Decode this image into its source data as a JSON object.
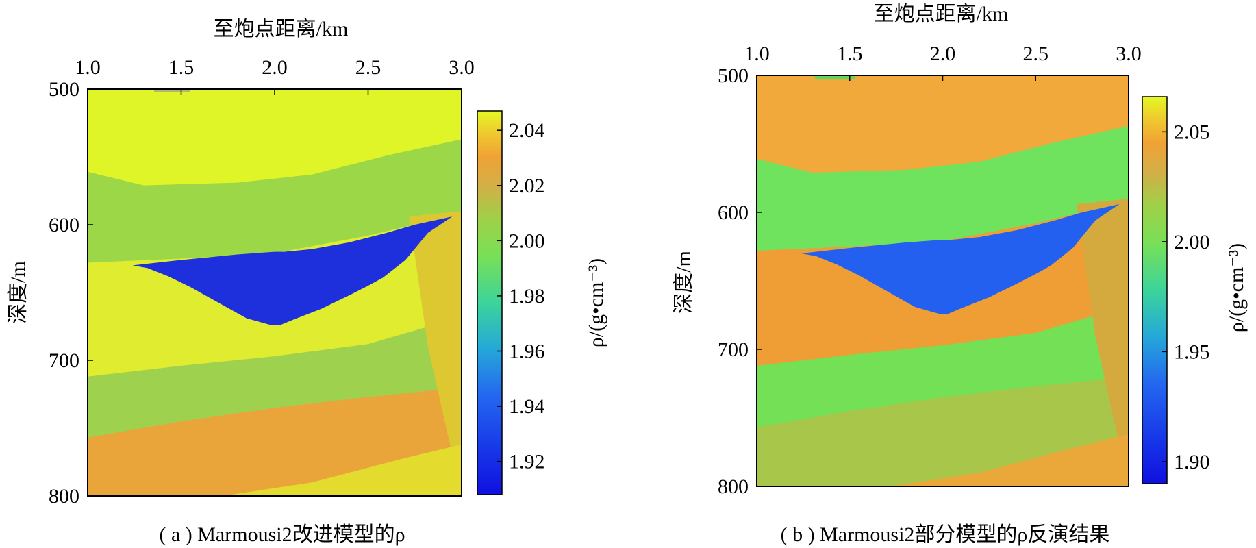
{
  "chart_data": [
    {
      "type": "heatmap",
      "panel_caption": "( a ) Marmousi2改进模型的ρ",
      "xlabel": "至炮点距离/km",
      "ylabel": "深度/m",
      "x_ticks": [
        "1.0",
        "1.5",
        "2.0",
        "2.5",
        "3.0"
      ],
      "y_ticks": [
        "500",
        "600",
        "700",
        "800"
      ],
      "xlim": [
        1.0,
        3.0
      ],
      "ylim": [
        500,
        800
      ],
      "y_inverted": true,
      "colorbar": {
        "label": "ρ/(g•cm⁻³)",
        "range": [
          1.908,
          2.047
        ],
        "ticks": [
          "1.92",
          "1.94",
          "1.96",
          "1.98",
          "2.00",
          "2.02",
          "2.04"
        ]
      },
      "layers": [
        {
          "name": "layer-1",
          "value": 2.045,
          "color": "#dff528",
          "bottom": {
            "x": [
              1.0,
              1.3,
              1.8,
              2.2,
              2.6,
              3.0
            ],
            "y": [
              561,
              571,
              569,
              563,
              549,
              537
            ]
          }
        },
        {
          "name": "layer-2",
          "value": 2.0,
          "color": "#9cd748",
          "bottom": {
            "x": [
              1.0,
              1.5,
              2.0,
              2.5,
              2.9,
              3.0
            ],
            "y": [
              628,
              625,
              621,
              608,
              595,
              594
            ]
          }
        },
        {
          "name": "layer-3",
          "value": 2.04,
          "color": "#e0ec30",
          "bottom": {
            "x": [
              1.0,
              1.5,
              2.0,
              2.5,
              3.0
            ],
            "y": [
              712,
              704,
              697,
              688,
              668
            ]
          }
        },
        {
          "name": "layer-4",
          "value": 2.0,
          "color": "#9ed24e",
          "bottom": {
            "x": [
              1.0,
              1.5,
              2.0,
              2.5,
              3.0
            ],
            "y": [
              757,
              745,
              735,
              727,
              720
            ]
          }
        },
        {
          "name": "layer-5",
          "value": 2.025,
          "color": "#eaa53a",
          "bottom": {
            "x": [
              1.0,
              3.0
            ],
            "y": [
              800,
              800
            ]
          }
        }
      ],
      "inclusions": [
        {
          "name": "right-wedge",
          "value": 2.035,
          "color": "#ddc832",
          "outline": {
            "x": [
              2.72,
              3.0,
              3.0,
              2.82
            ],
            "y": [
              594,
              590,
              800,
              690
            ]
          }
        },
        {
          "name": "bottom-wedge",
          "value": 2.04,
          "color": "#e3dc2f",
          "outline": {
            "x": [
              1.72,
              2.2,
              2.7,
              3.0,
              3.0,
              1.72
            ],
            "y": [
              800,
              790,
              772,
              762,
              800,
              800
            ]
          }
        },
        {
          "name": "low-density-body",
          "value": 1.912,
          "color": "#1e30dc",
          "outline": {
            "x": [
              1.24,
              1.5,
              1.8,
              2.0,
              2.05,
              2.2,
              2.4,
              2.6,
              2.75,
              2.95,
              2.82,
              2.7,
              2.58,
              2.5,
              2.4,
              2.25,
              2.1,
              2.03,
              1.98,
              1.85,
              1.68,
              1.55,
              1.43,
              1.32,
              1.24
            ],
            "y": [
              630,
              626,
              622,
              620,
              620,
              618,
              613,
              606,
              600,
              594,
              606,
              626,
              639,
              645,
              652,
              662,
              670,
              674,
              674,
              669,
              656,
              646,
              638,
              632,
              630
            ]
          }
        }
      ]
    },
    {
      "type": "heatmap",
      "panel_caption": "( b ) Marmousi2部分模型的ρ反演结果",
      "xlabel": "至炮点距离/km",
      "ylabel": "深度/m",
      "x_ticks": [
        "1.0",
        "1.5",
        "2.0",
        "2.5",
        "3.0"
      ],
      "y_ticks": [
        "500",
        "600",
        "700",
        "800"
      ],
      "xlim": [
        1.0,
        3.0
      ],
      "ylim": [
        500,
        800
      ],
      "y_inverted": true,
      "colorbar": {
        "label": "ρ/(g•cm⁻³)",
        "range": [
          1.89,
          2.066
        ],
        "ticks": [
          "1.90",
          "1.95",
          "2.00",
          "2.05"
        ]
      },
      "layers": [
        {
          "name": "layer-1",
          "value": 2.05,
          "color": "#f0a93a",
          "bottom": {
            "x": [
              1.0,
              1.3,
              1.8,
              2.2,
              2.6,
              3.0
            ],
            "y": [
              561,
              571,
              569,
              563,
              549,
              537
            ]
          }
        },
        {
          "name": "layer-2",
          "value": 1.995,
          "color": "#70e35e",
          "bottom": {
            "x": [
              1.0,
              1.5,
              2.0,
              2.5,
              2.9,
              3.0
            ],
            "y": [
              628,
              625,
              621,
              608,
              595,
              594
            ]
          }
        },
        {
          "name": "layer-3",
          "value": 2.045,
          "color": "#ee9e34",
          "bottom": {
            "x": [
              1.0,
              1.5,
              2.0,
              2.5,
              3.0
            ],
            "y": [
              712,
              704,
              697,
              688,
              668
            ]
          }
        },
        {
          "name": "layer-4",
          "value": 1.995,
          "color": "#74e055",
          "bottom": {
            "x": [
              1.0,
              1.5,
              2.0,
              2.5,
              3.0
            ],
            "y": [
              757,
              745,
              735,
              727,
              720
            ]
          }
        },
        {
          "name": "layer-5",
          "value": 2.02,
          "color": "#a8c64a",
          "bottom": {
            "x": [
              1.0,
              3.0
            ],
            "y": [
              800,
              800
            ]
          }
        }
      ],
      "inclusions": [
        {
          "name": "right-wedge",
          "value": 2.035,
          "color": "#d4aa3e",
          "outline": {
            "x": [
              2.72,
              3.0,
              3.0,
              2.82
            ],
            "y": [
              594,
              590,
              800,
              690
            ]
          }
        },
        {
          "name": "bottom-wedge",
          "value": 2.045,
          "color": "#eba83a",
          "outline": {
            "x": [
              1.72,
              2.2,
              2.7,
              3.0,
              3.0,
              1.72
            ],
            "y": [
              800,
              790,
              772,
              762,
              800,
              800
            ]
          }
        },
        {
          "name": "low-density-body",
          "value": 1.935,
          "color": "#2360f0",
          "outline": {
            "x": [
              1.24,
              1.5,
              1.8,
              2.0,
              2.05,
              2.2,
              2.4,
              2.6,
              2.75,
              2.95,
              2.82,
              2.7,
              2.58,
              2.5,
              2.4,
              2.25,
              2.1,
              2.03,
              1.98,
              1.85,
              1.68,
              1.55,
              1.43,
              1.32,
              1.24
            ],
            "y": [
              630,
              626,
              622,
              620,
              620,
              618,
              613,
              606,
              600,
              594,
              606,
              626,
              639,
              645,
              652,
              662,
              670,
              674,
              674,
              669,
              656,
              646,
              638,
              632,
              630
            ]
          }
        }
      ]
    }
  ]
}
